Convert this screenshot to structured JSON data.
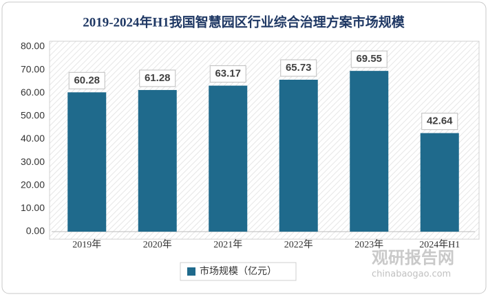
{
  "chart_data": {
    "type": "bar",
    "title": "2019-2024年H1我国智慧园区行业综合治理方案市场规模",
    "categories": [
      "2019年",
      "2020年",
      "2021年",
      "2022年",
      "2023年",
      "2024年H1"
    ],
    "series": [
      {
        "name": "市场规模（亿元）",
        "color": "#1f6a8c",
        "values": [
          60.28,
          61.28,
          63.17,
          65.73,
          69.55,
          42.64
        ]
      }
    ],
    "ylim": [
      0,
      80
    ],
    "yticks": [
      {
        "value": 0,
        "label": "0.00"
      },
      {
        "value": 10,
        "label": "10.00"
      },
      {
        "value": 20,
        "label": "20.00"
      },
      {
        "value": 30,
        "label": "30.00"
      },
      {
        "value": 40,
        "label": "40.00"
      },
      {
        "value": 50,
        "label": "50.00"
      },
      {
        "value": 60,
        "label": "60.00"
      },
      {
        "value": 70,
        "label": "70.00"
      },
      {
        "value": 80,
        "label": "80.00"
      }
    ],
    "grid": false,
    "legend": "bottom"
  },
  "watermark": {
    "name": "观研报告网",
    "url": "chinabaogao.com"
  }
}
